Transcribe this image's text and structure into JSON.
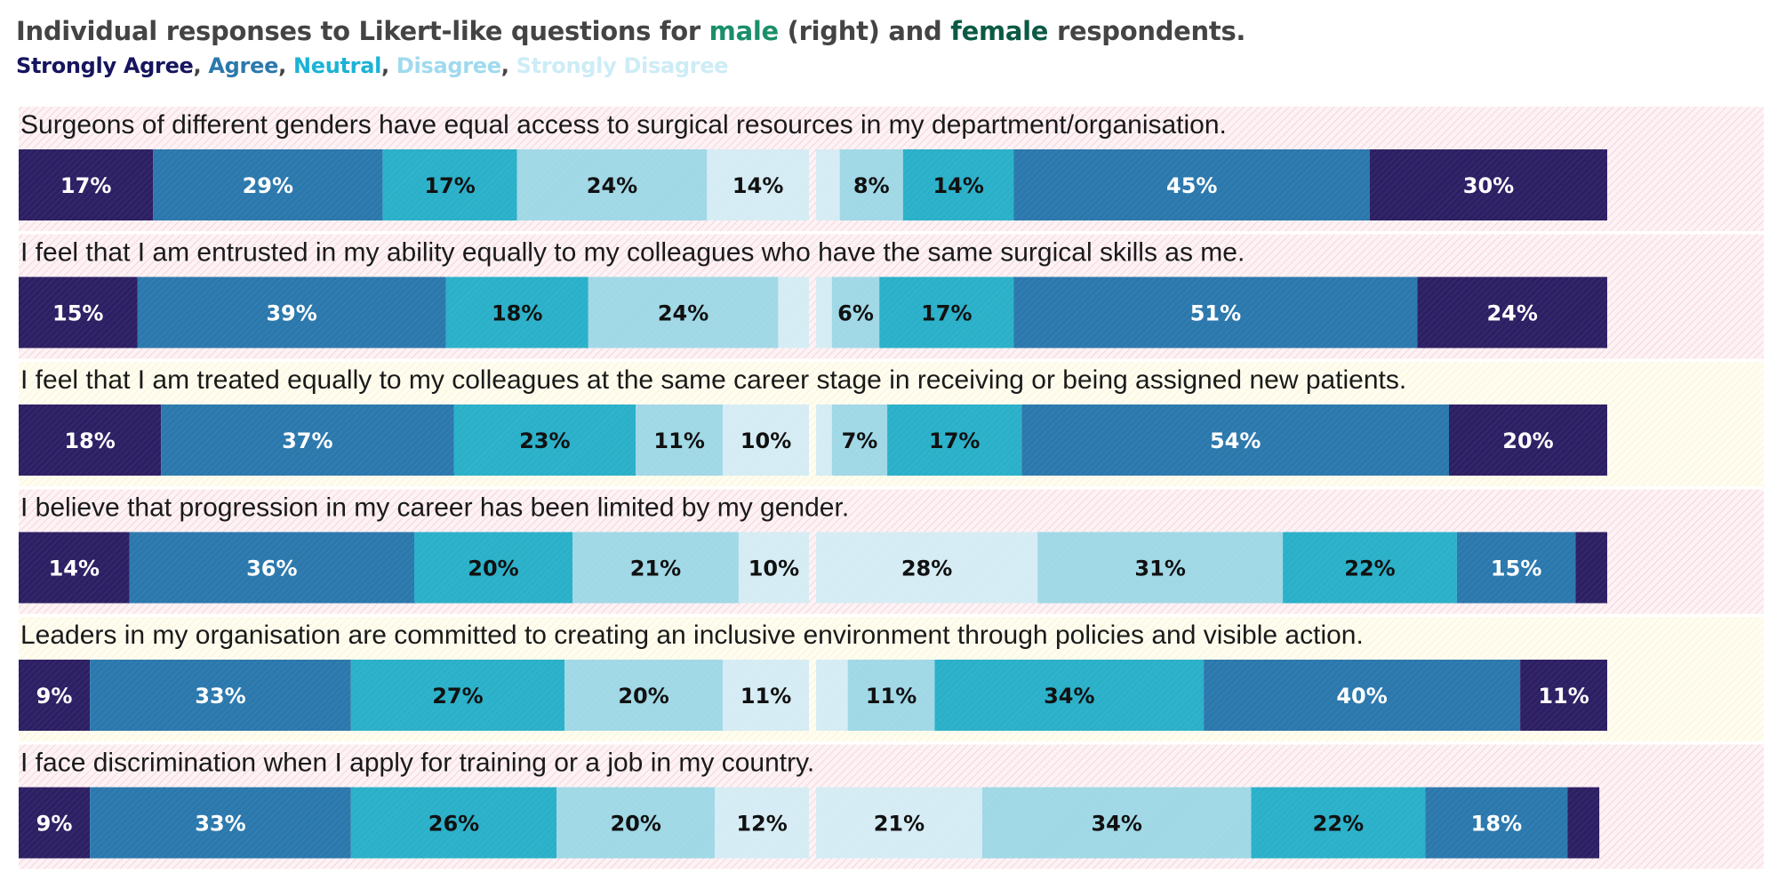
{
  "header": {
    "title_parts": [
      "Individual responses to Likert-like questions for ",
      "male",
      " (right) and ",
      "female",
      " respondents."
    ],
    "legend_separator": ", "
  },
  "colors": {
    "Strongly Agree": "#2d1f63",
    "Agree": "#2b78ad",
    "Neutral": "#2ab0c9",
    "Disagree": "#a0d8e6",
    "Strongly Disagree": "#d6ecf4",
    "legend_Strongly Agree": "#16155e",
    "legend_Agree": "#2b78ad",
    "legend_Neutral": "#1cb2d6",
    "legend_Disagree": "#9fdaee",
    "legend_Strongly Disagree": "#cdecf6",
    "male_word": "#1a8f6a",
    "female_word": "#0b5a45"
  },
  "chart_data": {
    "type": "bar",
    "subtype": "diverging-stacked-100",
    "title": "Individual responses to Likert-like questions for male (right) and female respondents.",
    "categories_order": [
      "Strongly Agree",
      "Agree",
      "Neutral",
      "Disagree",
      "Strongly Disagree"
    ],
    "questions": [
      {
        "label": "Surgeons of different genders have equal access to surgical resources in my department/organisation.",
        "background": "pink",
        "female": {
          "Strongly Agree": 17,
          "Agree": 29,
          "Neutral": 17,
          "Disagree": 24,
          "Strongly Disagree": 14
        },
        "male": {
          "Strongly Agree": 30,
          "Agree": 45,
          "Neutral": 14,
          "Disagree": 8,
          "Strongly Disagree": 3
        }
      },
      {
        "label": "I feel that I am entrusted in my ability equally to my colleagues who have the same surgical skills as me.",
        "background": "pink",
        "female": {
          "Strongly Agree": 15,
          "Agree": 39,
          "Neutral": 18,
          "Disagree": 24,
          "Strongly Disagree": 4
        },
        "male": {
          "Strongly Agree": 24,
          "Agree": 51,
          "Neutral": 17,
          "Disagree": 6,
          "Strongly Disagree": 2
        }
      },
      {
        "label": "I feel that I am treated equally to my colleagues at the same career stage in receiving or being assigned new patients.",
        "background": "yellow",
        "female": {
          "Strongly Agree": 18,
          "Agree": 37,
          "Neutral": 23,
          "Disagree": 11,
          "Strongly Disagree": 10
        },
        "male": {
          "Strongly Agree": 20,
          "Agree": 54,
          "Neutral": 17,
          "Disagree": 7,
          "Strongly Disagree": 2
        }
      },
      {
        "label": "I believe that progression in my career has been limited by my gender.",
        "background": "pink",
        "female": {
          "Strongly Agree": 14,
          "Agree": 36,
          "Neutral": 20,
          "Disagree": 21,
          "Strongly Disagree": 10
        },
        "male": {
          "Strongly Agree": 4,
          "Agree": 15,
          "Neutral": 22,
          "Disagree": 31,
          "Strongly Disagree": 28
        }
      },
      {
        "label": "Leaders in my organisation are committed to creating an inclusive environment through policies and visible action.",
        "background": "yellow",
        "female": {
          "Strongly Agree": 9,
          "Agree": 33,
          "Neutral": 27,
          "Disagree": 20,
          "Strongly Disagree": 11
        },
        "male": {
          "Strongly Agree": 11,
          "Agree": 40,
          "Neutral": 34,
          "Disagree": 11,
          "Strongly Disagree": 4
        }
      },
      {
        "label": "I face discrimination when I apply for training or a job in my country.",
        "background": "pink",
        "female": {
          "Strongly Agree": 9,
          "Agree": 33,
          "Neutral": 26,
          "Disagree": 20,
          "Strongly Disagree": 12
        },
        "male": {
          "Strongly Agree": 4,
          "Agree": 18,
          "Neutral": 22,
          "Disagree": 34,
          "Strongly Disagree": 21
        }
      }
    ]
  }
}
